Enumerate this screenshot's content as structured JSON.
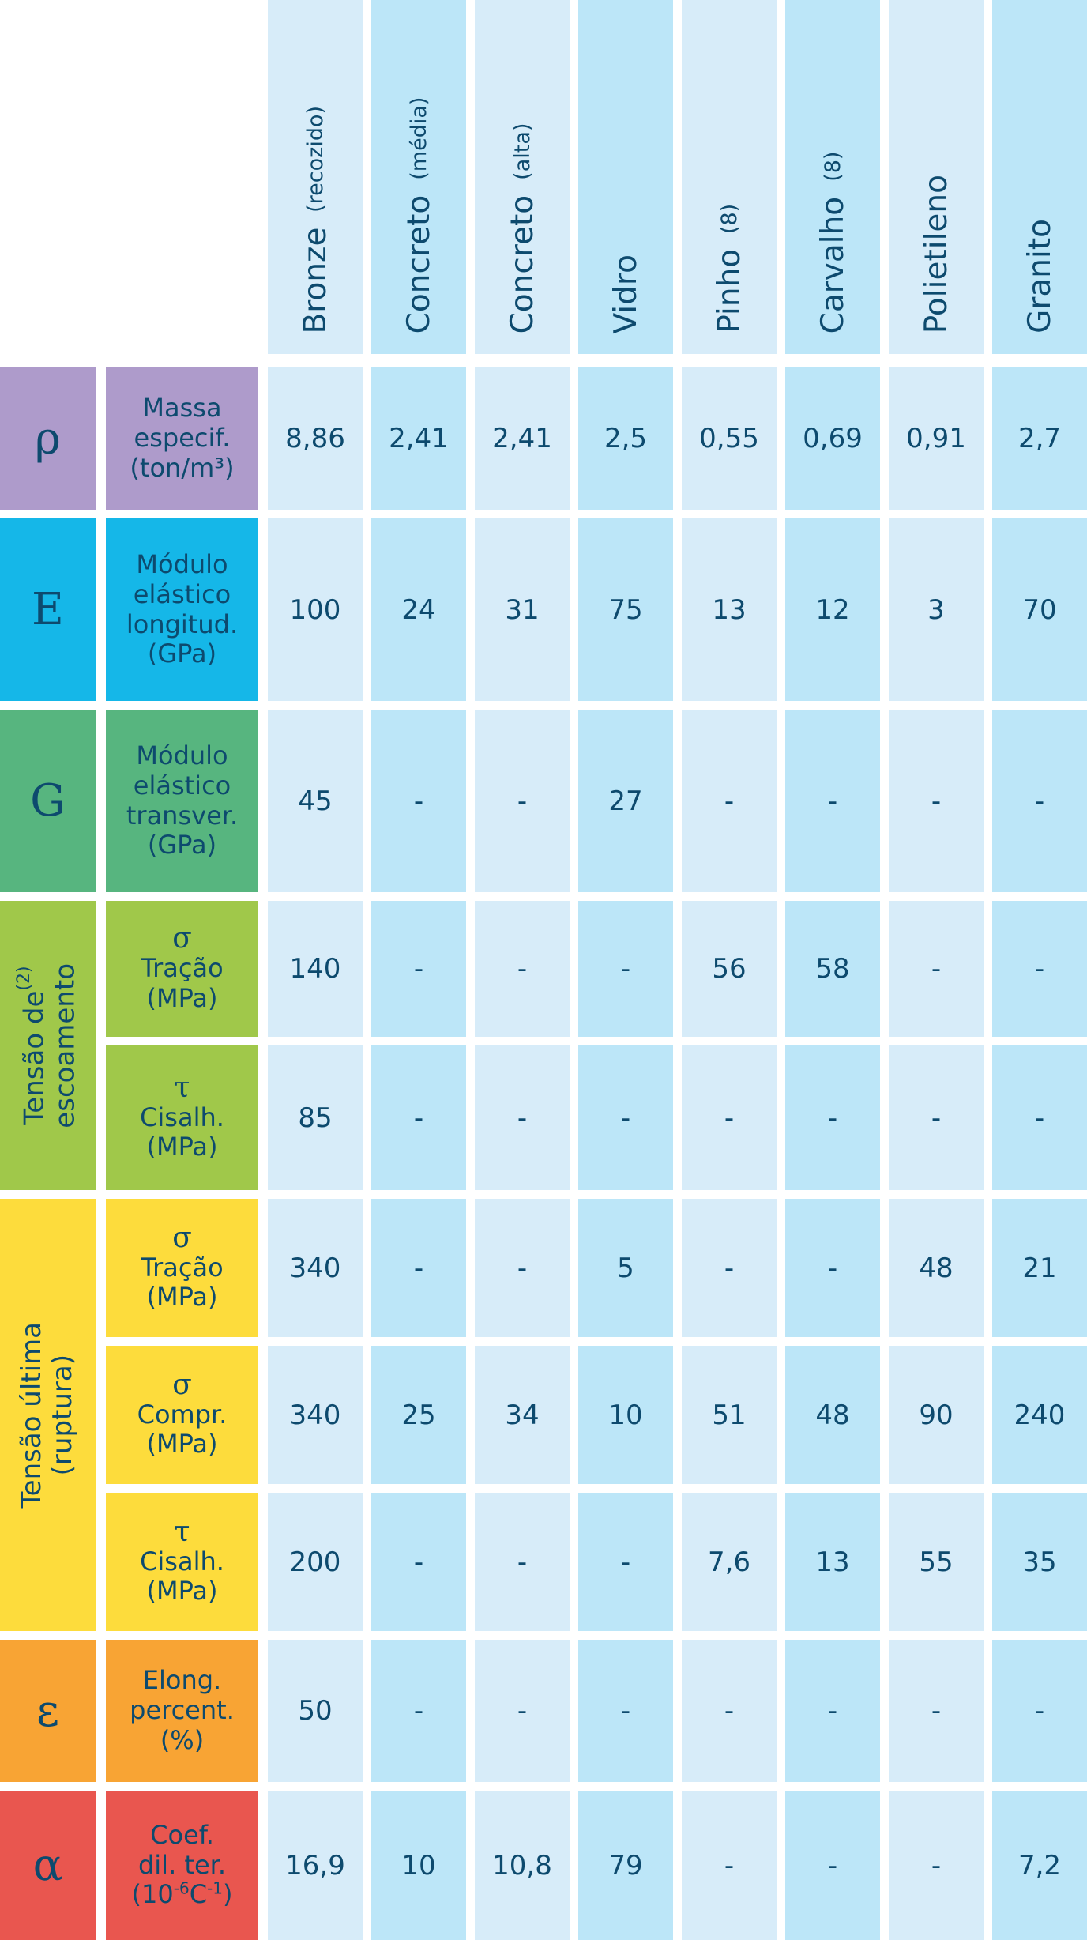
{
  "materials": [
    {
      "name": "Bronze",
      "note": "(recozido)"
    },
    {
      "name": "Concreto",
      "note": "(média)"
    },
    {
      "name": "Concreto",
      "note": "(alta)"
    },
    {
      "name": "Vidro",
      "note": ""
    },
    {
      "name": "Pinho",
      "note": "(8)"
    },
    {
      "name": "Carvalho",
      "note": "(8)"
    },
    {
      "name": "Polietileno",
      "note": ""
    },
    {
      "name": "Granito",
      "note": ""
    }
  ],
  "groups": [
    {
      "text": "Tensão de",
      "sup": "(2)",
      "text2": "\nescoamento",
      "color": "#a0c84a"
    },
    {
      "text": "Tensão última\n(ruptura)",
      "sup": "",
      "text2": "",
      "color": "#fddc3c"
    }
  ],
  "rows": [
    {
      "symbol": "ρ",
      "color": "#ae9bcb",
      "label_symbol": "",
      "label_lines": [
        "Massa",
        "especif."
      ],
      "unit_pre": "(ton/m³)",
      "unit_sup": "",
      "unit_post": "",
      "values": [
        "8,86",
        "2,41",
        "2,41",
        "2,5",
        "0,55",
        "0,69",
        "0,91",
        "2,7"
      ]
    },
    {
      "symbol": "E",
      "color": "#15b7e8",
      "label_symbol": "",
      "label_lines": [
        "Módulo",
        "elástico",
        "longitud."
      ],
      "unit_pre": "(GPa)",
      "unit_sup": "",
      "unit_post": "",
      "values": [
        "100",
        "24",
        "31",
        "75",
        "13",
        "12",
        "3",
        "70"
      ]
    },
    {
      "symbol": "G",
      "color": "#57b57f",
      "label_symbol": "",
      "label_lines": [
        "Módulo",
        "elástico",
        "transver."
      ],
      "unit_pre": "(GPa)",
      "unit_sup": "",
      "unit_post": "",
      "values": [
        "45",
        "-",
        "-",
        "27",
        "-",
        "-",
        "-",
        "-"
      ]
    },
    {
      "symbol": "",
      "color": "#a0c84a",
      "label_symbol": "σ",
      "label_lines": [
        "Tração"
      ],
      "unit_pre": "(MPa)",
      "unit_sup": "",
      "unit_post": "",
      "values": [
        "140",
        "-",
        "-",
        "-",
        "56",
        "58",
        "-",
        "-"
      ]
    },
    {
      "symbol": "",
      "color": "#a0c84a",
      "label_symbol": "τ",
      "label_lines": [
        "Cisalh."
      ],
      "unit_pre": "(MPa)",
      "unit_sup": "",
      "unit_post": "",
      "values": [
        "85",
        "-",
        "-",
        "-",
        "-",
        "-",
        "-",
        "-"
      ]
    },
    {
      "symbol": "",
      "color": "#fddc3c",
      "label_symbol": "σ",
      "label_lines": [
        "Tração"
      ],
      "unit_pre": "(MPa)",
      "unit_sup": "",
      "unit_post": "",
      "values": [
        "340",
        "-",
        "-",
        "5",
        "-",
        "-",
        "48",
        "21"
      ]
    },
    {
      "symbol": "",
      "color": "#fddc3c",
      "label_symbol": "σ",
      "label_lines": [
        "Compr."
      ],
      "unit_pre": "(MPa)",
      "unit_sup": "",
      "unit_post": "",
      "values": [
        "340",
        "25",
        "34",
        "10",
        "51",
        "48",
        "90",
        "240"
      ]
    },
    {
      "symbol": "",
      "color": "#fddc3c",
      "label_symbol": "τ",
      "label_lines": [
        "Cisalh."
      ],
      "unit_pre": "(MPa)",
      "unit_sup": "",
      "unit_post": "",
      "values": [
        "200",
        "-",
        "-",
        "-",
        "7,6",
        "13",
        "55",
        "35"
      ]
    },
    {
      "symbol": "ε",
      "color": "#f8a434",
      "label_symbol": "",
      "label_lines": [
        "Elong.",
        "percent."
      ],
      "unit_pre": "(%)",
      "unit_sup": "",
      "unit_post": "",
      "values": [
        "50",
        "-",
        "-",
        "-",
        "-",
        "-",
        "-",
        "-"
      ]
    },
    {
      "symbol": "α",
      "color": "#e9564f",
      "label_symbol": "",
      "label_lines": [
        "Coef.",
        "dil. ter."
      ],
      "unit_pre": "(10",
      "unit_sup": "-6",
      "unit_post": "C",
      "unit_sup2": "-1",
      "unit_end": ")",
      "values": [
        "16,9",
        "10",
        "10,8",
        "79",
        "-",
        "-",
        "-",
        "7,2"
      ]
    }
  ],
  "colors": {
    "column_light": "#d7ecf9",
    "column_dark": "#bce6f8",
    "text": "#0d4a6e"
  }
}
